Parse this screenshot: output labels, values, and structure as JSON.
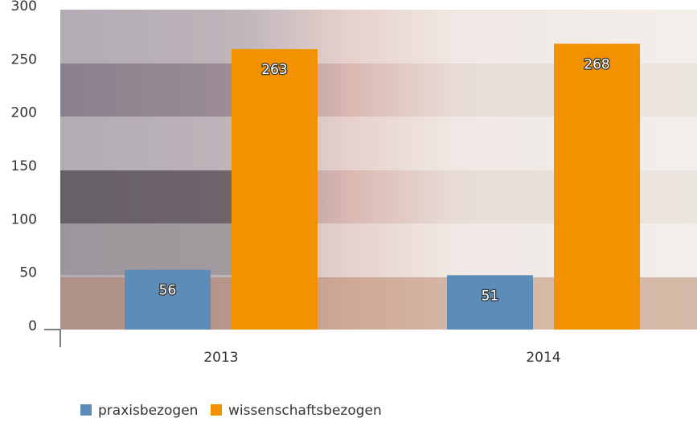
{
  "chart_data": {
    "type": "bar",
    "categories": [
      "2013",
      "2014"
    ],
    "series": [
      {
        "name": "praxisbezogen",
        "color": "#5b8db8",
        "values": [
          56,
          51
        ]
      },
      {
        "name": "wissenschaftsbezogen",
        "color": "#f39200",
        "values": [
          263,
          268
        ]
      }
    ],
    "ylim": [
      0,
      300
    ],
    "yticks": [
      0,
      50,
      100,
      150,
      200,
      250,
      300
    ]
  }
}
